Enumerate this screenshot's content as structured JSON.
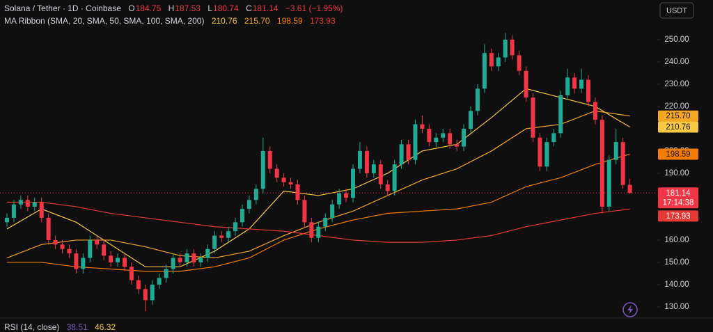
{
  "chart_data": {
    "type": "candlestick",
    "title": "Solana / Tether · 1D · Coinbase",
    "ohlc_labels": [
      "O",
      "H",
      "L",
      "C"
    ],
    "change_label": "−3.61 (−1.95%)",
    "currency": "USDT",
    "countdown": "17:14:38",
    "up_color": "#22ab94",
    "down_color": "#f23645",
    "open": [
      168,
      170,
      176,
      178,
      175,
      177,
      170,
      160,
      158,
      156,
      154,
      147,
      152,
      160,
      158,
      153,
      150,
      152,
      148,
      142,
      138,
      133,
      140,
      143,
      147,
      152,
      150,
      154,
      150,
      152,
      156,
      162,
      161,
      164,
      168,
      174,
      178,
      183,
      200,
      192,
      188,
      186,
      185,
      178,
      168,
      161,
      166,
      170,
      176,
      181,
      179,
      192,
      200,
      190,
      194,
      185,
      182,
      194,
      203,
      196,
      212,
      210,
      204,
      206,
      208,
      203,
      202,
      210,
      218,
      228,
      244,
      238,
      242,
      250,
      243,
      236,
      224,
      206,
      193,
      204,
      208,
      225,
      233,
      228,
      232,
      222,
      214,
      175,
      196,
      204,
      184.75
    ],
    "high": [
      172,
      178,
      180,
      180,
      179,
      179,
      172,
      162,
      160,
      158,
      156,
      154,
      162,
      162,
      160,
      155,
      154,
      154,
      150,
      144,
      140,
      142,
      145,
      149,
      154,
      154,
      156,
      156,
      154,
      158,
      164,
      164,
      166,
      170,
      176,
      180,
      185,
      206,
      202,
      194,
      190,
      188,
      187,
      180,
      170,
      168,
      172,
      178,
      183,
      183,
      194,
      204,
      202,
      196,
      196,
      187,
      196,
      205,
      205,
      214,
      216,
      212,
      208,
      210,
      210,
      205,
      212,
      220,
      230,
      248,
      246,
      244,
      253,
      252,
      245,
      238,
      226,
      208,
      206,
      210,
      227,
      237,
      235,
      237,
      234,
      224,
      216,
      198,
      210,
      206,
      187.53
    ],
    "low": [
      166,
      168,
      174,
      173,
      173,
      168,
      158,
      156,
      154,
      152,
      145,
      145,
      150,
      156,
      151,
      148,
      148,
      146,
      140,
      136,
      128,
      131,
      138,
      141,
      145,
      148,
      148,
      148,
      148,
      150,
      154,
      159,
      159,
      162,
      166,
      172,
      176,
      181,
      190,
      186,
      184,
      183,
      176,
      166,
      159,
      159,
      164,
      168,
      174,
      177,
      177,
      190,
      188,
      188,
      183,
      180,
      180,
      192,
      194,
      194,
      208,
      202,
      202,
      204,
      201,
      200,
      200,
      208,
      216,
      226,
      236,
      236,
      240,
      241,
      234,
      222,
      204,
      191,
      191,
      202,
      206,
      223,
      226,
      226,
      220,
      212,
      172,
      173,
      194,
      183,
      180.74
    ],
    "close": [
      170,
      176,
      178,
      175,
      177,
      170,
      160,
      158,
      156,
      154,
      147,
      152,
      160,
      158,
      153,
      150,
      152,
      148,
      142,
      138,
      133,
      140,
      143,
      147,
      152,
      150,
      154,
      150,
      152,
      156,
      162,
      161,
      164,
      168,
      174,
      178,
      183,
      200,
      192,
      188,
      186,
      185,
      178,
      168,
      161,
      166,
      170,
      176,
      181,
      179,
      192,
      200,
      190,
      194,
      185,
      182,
      194,
      203,
      196,
      212,
      210,
      204,
      206,
      208,
      203,
      202,
      210,
      218,
      228,
      244,
      238,
      242,
      250,
      243,
      236,
      224,
      206,
      193,
      204,
      208,
      225,
      233,
      228,
      232,
      222,
      214,
      175,
      196,
      204,
      184.75,
      181.14
    ],
    "ylim": [
      125.6,
      267.8
    ],
    "yticks": [
      {
        "value": 130,
        "label": "130.00"
      },
      {
        "value": 140,
        "label": "140.00"
      },
      {
        "value": 150,
        "label": "150.00"
      },
      {
        "value": 160,
        "label": "160.00"
      },
      {
        "value": 170,
        "label": "170.00"
      },
      {
        "value": 180,
        "label": "180.00"
      },
      {
        "value": 190,
        "label": "190.00"
      },
      {
        "value": 200,
        "label": "200.00"
      },
      {
        "value": 210,
        "label": "210.00"
      },
      {
        "value": 220,
        "label": "220.00"
      },
      {
        "value": 230,
        "label": "230.00"
      },
      {
        "value": 240,
        "label": "240.00"
      },
      {
        "value": 250,
        "label": "250.00"
      }
    ],
    "grid": false,
    "overlay": {
      "type": "line",
      "title": "MA Ribbon (SMA, 20, SMA, 50, SMA, 100, SMA, 200)",
      "x": [
        0,
        5,
        10,
        15,
        20,
        25,
        30,
        35,
        40,
        45,
        50,
        55,
        60,
        65,
        70,
        75,
        80,
        85,
        90
      ],
      "series": [
        {
          "color": "#f7c843",
          "current_label": "210.76",
          "values": [
            165,
            174,
            168,
            158,
            148,
            148,
            155,
            165,
            182,
            180,
            183,
            190,
            200,
            203,
            215,
            228,
            224,
            220,
            210.76
          ]
        },
        {
          "color": "#f5a623",
          "current_label": "215.70",
          "values": [
            152,
            158,
            160,
            160,
            157,
            153,
            152,
            155,
            162,
            168,
            173,
            180,
            187,
            192,
            200,
            210,
            212,
            218,
            215.7
          ]
        },
        {
          "color": "#f57c00",
          "current_label": "198.59",
          "values": [
            150,
            150,
            148,
            147,
            146,
            146,
            148,
            152,
            160,
            165,
            169,
            172,
            173,
            174,
            177,
            184,
            188,
            194,
            198.59
          ]
        },
        {
          "color": "#e53935",
          "current_label": "173.93",
          "values": [
            177,
            177,
            175,
            172,
            170,
            168,
            166,
            165,
            164,
            162,
            160,
            159,
            159,
            160,
            162,
            166,
            169,
            172,
            173.93
          ]
        }
      ]
    },
    "rsi": {
      "title": "RSI (14, close)",
      "values": [
        38.51,
        46.32
      ],
      "colors": [
        "#7e57c2",
        "#f7c843"
      ]
    }
  }
}
